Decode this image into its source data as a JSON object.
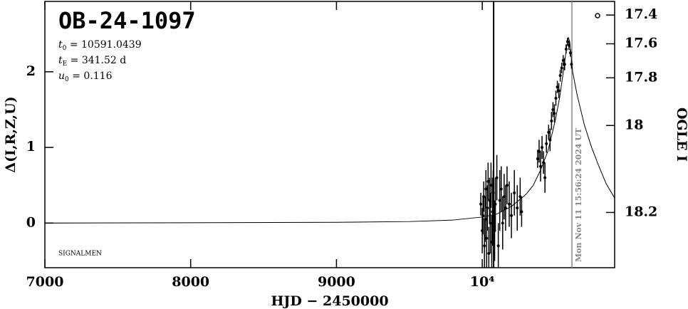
{
  "chart_data": {
    "type": "scatter",
    "title": "OB-24-1097",
    "parameters": [
      {
        "symbol": "t",
        "sub": "0",
        "text": " = 10591.0439"
      },
      {
        "symbol": "t",
        "sub": "E",
        "text": " = 341.52 d"
      },
      {
        "symbol": "u",
        "sub": "0",
        "text": " = 0.116"
      }
    ],
    "credit": "SIGNALMEN",
    "xlabel": "HJD − 2450000",
    "ylabel": "Δ(I,R,Z,U)",
    "y2label": "OGLE I",
    "date_annotation": "Mon Nov 11 15:56:24 2024 UT",
    "date_line_x": 10615,
    "marker_line_x": 10078,
    "xlim": [
      7000,
      10908
    ],
    "ylim": [
      -0.59,
      2.93
    ],
    "xticks": [
      7000,
      8000,
      9000,
      {
        "value": 10000,
        "label": "10⁴"
      }
    ],
    "yticks": [
      0,
      1,
      2
    ],
    "y2ticks": [
      {
        "value": 17.4,
        "at": 2.75
      },
      {
        "value": 17.6,
        "at": 2.37
      },
      {
        "value": 17.8,
        "at": 1.92
      },
      {
        "value": 18,
        "at": 1.29
      },
      {
        "value": 18.2,
        "at": 0.14
      }
    ],
    "model": {
      "color": "#000000",
      "x": [
        7000,
        9000,
        9500,
        9800,
        10000,
        10100,
        10200,
        10300,
        10350,
        10400,
        10450,
        10500,
        10530,
        10560,
        10580,
        10591,
        10600,
        10620,
        10650,
        10700,
        10750,
        10800,
        10850,
        10908
      ],
      "values": [
        0,
        0.01,
        0.02,
        0.04,
        0.08,
        0.12,
        0.22,
        0.38,
        0.5,
        0.7,
        0.95,
        1.35,
        1.65,
        2.05,
        2.35,
        2.45,
        2.4,
        2.0,
        1.7,
        1.3,
        1.0,
        0.75,
        0.52,
        0.33
      ]
    },
    "series": [
      {
        "name": "OGLE",
        "color": "#000000",
        "x": [
          9990,
          10000,
          10005,
          10010,
          10015,
          10020,
          10025,
          10030,
          10035,
          10040,
          10045,
          10050,
          10055,
          10060,
          10065,
          10070,
          10075,
          10085,
          10090,
          10100,
          10110,
          10120,
          10130,
          10140,
          10150,
          10160,
          10170,
          10185,
          10200,
          10220,
          10240,
          10260,
          10270,
          10380,
          10390,
          10400,
          10410,
          10420,
          10430,
          10440,
          10455,
          10465,
          10475,
          10485,
          10495,
          10505,
          10515,
          10525,
          10535,
          10545,
          10555,
          10565,
          10575,
          10585,
          10595,
          10605,
          10612
        ],
        "values": [
          0.25,
          -0.1,
          0.1,
          0.35,
          -0.3,
          0.05,
          0.45,
          -0.2,
          0.2,
          0.55,
          -0.4,
          0.3,
          0.0,
          0.5,
          -0.25,
          0.15,
          0.4,
          -0.1,
          0.25,
          0.6,
          -0.3,
          0.3,
          0.45,
          0.0,
          0.35,
          0.2,
          0.5,
          0.25,
          0.1,
          0.4,
          0.2,
          0.35,
          0.15,
          0.85,
          0.95,
          0.75,
          1.0,
          0.8,
          0.6,
          1.05,
          1.2,
          1.1,
          1.35,
          1.5,
          1.45,
          1.65,
          1.8,
          1.75,
          1.95,
          2.05,
          2.15,
          2.1,
          2.3,
          2.4,
          2.35,
          2.25,
          2.1
        ],
        "errors": [
          0.15,
          0.3,
          0.25,
          0.2,
          0.35,
          0.3,
          0.25,
          0.4,
          0.3,
          0.25,
          0.35,
          0.3,
          0.4,
          0.3,
          0.35,
          0.45,
          0.3,
          0.4,
          0.35,
          0.3,
          0.3,
          0.4,
          0.3,
          0.35,
          0.3,
          0.3,
          0.25,
          0.3,
          0.3,
          0.3,
          0.3,
          0.25,
          0.2,
          0.12,
          0.15,
          0.2,
          0.15,
          0.15,
          0.2,
          0.12,
          0.1,
          0.15,
          0.12,
          0.1,
          0.12,
          0.1,
          0.08,
          0.1,
          0.08,
          0.07,
          0.07,
          0.08,
          0.06,
          0.05,
          0.06,
          0.05,
          0.06
        ]
      }
    ]
  }
}
